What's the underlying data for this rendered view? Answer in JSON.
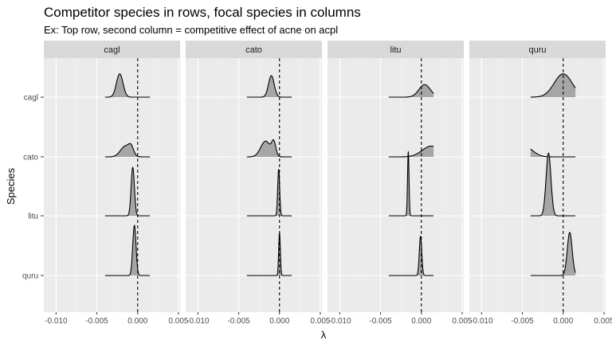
{
  "chart_data": {
    "type": "ridgeline",
    "title": "Competitor species in rows, focal species in columns",
    "subtitle": "Ex: Top row, second column = competitive effect of acne on acpl",
    "xlabel": "λ",
    "ylabel": "Species",
    "xlim": [
      -0.0115,
      0.0052
    ],
    "x_ticks": [
      -0.01,
      -0.005,
      0.0,
      0.005
    ],
    "x_tick_labels": [
      "-0.010",
      "-0.005",
      "0.000",
      "0.005"
    ],
    "vline_x": 0.0,
    "facets": [
      "cagl",
      "cato",
      "litu",
      "quru"
    ],
    "rows": [
      "cagl",
      "cato",
      "litu",
      "quru"
    ],
    "distribution_range": [
      -0.004,
      0.0015
    ],
    "densities": [
      [
        {
          "row": "cagl",
          "peaks": [
            {
              "mean": -0.0022,
              "sd": 0.0004,
              "weight": 1
            }
          ],
          "height": 0.65
        },
        {
          "row": "cato",
          "peaks": [
            {
              "mean": -0.0015,
              "sd": 0.0006,
              "weight": 0.6
            },
            {
              "mean": -0.0008,
              "sd": 0.0003,
              "weight": 0.4
            }
          ],
          "height": 0.5
        },
        {
          "row": "litu",
          "peaks": [
            {
              "mean": -0.0006,
              "sd": 0.0002,
              "weight": 1
            }
          ],
          "height": 1.35
        },
        {
          "row": "quru",
          "peaks": [
            {
              "mean": -0.0004,
              "sd": 0.0002,
              "weight": 1
            }
          ],
          "height": 1.4
        }
      ],
      [
        {
          "row": "cagl",
          "peaks": [
            {
              "mean": -0.001,
              "sd": 0.00035,
              "weight": 1
            }
          ],
          "height": 0.6
        },
        {
          "row": "cato",
          "peaks": [
            {
              "mean": -0.0017,
              "sd": 0.0006,
              "weight": 0.55
            },
            {
              "mean": -0.0007,
              "sd": 0.00025,
              "weight": 0.45
            }
          ],
          "height": 0.8
        },
        {
          "row": "litu",
          "peaks": [
            {
              "mean": -0.0001,
              "sd": 0.00012,
              "weight": 1
            }
          ],
          "height": 1.3
        },
        {
          "row": "quru",
          "peaks": [
            {
              "mean": 0.0,
              "sd": 0.0001,
              "weight": 1
            }
          ],
          "height": 1.2
        }
      ],
      [
        {
          "row": "cagl",
          "peaks": [
            {
              "mean": 0.0004,
              "sd": 0.0007,
              "weight": 1
            }
          ],
          "height": 0.35
        },
        {
          "row": "cato",
          "peaks": [
            {
              "mean": 0.0012,
              "sd": 0.0011,
              "weight": 1
            }
          ],
          "height": 0.3
        },
        {
          "row": "litu",
          "peaks": [
            {
              "mean": -0.0016,
              "sd": 9e-05,
              "weight": 1
            }
          ],
          "height": 1.8
        },
        {
          "row": "quru",
          "peaks": [
            {
              "mean": -0.0001,
              "sd": 0.00015,
              "weight": 1
            }
          ],
          "height": 1.1
        }
      ],
      [
        {
          "row": "cagl",
          "peaks": [
            {
              "mean": 0.0,
              "sd": 0.0011,
              "weight": 1
            }
          ],
          "height": 0.65
        },
        {
          "row": "cato",
          "peaks": [
            {
              "mean": -0.007,
              "sd": 0.0016,
              "weight": 0.55
            },
            {
              "mean": -0.0045,
              "sd": 0.0009,
              "weight": 0.45
            }
          ],
          "height": 0.45
        },
        {
          "row": "litu",
          "peaks": [
            {
              "mean": -0.0018,
              "sd": 0.0003,
              "weight": 1
            }
          ],
          "height": 1.75
        },
        {
          "row": "quru",
          "peaks": [
            {
              "mean": 0.0008,
              "sd": 0.0003,
              "weight": 1
            }
          ],
          "height": 1.2
        }
      ]
    ],
    "grid": true,
    "colors": {
      "panel_bg": "#ebebeb",
      "grid_major": "#ffffff",
      "strip_bg": "#d9d9d9",
      "density_fill": "#a6a6a6",
      "density_stroke": "#000000"
    }
  }
}
